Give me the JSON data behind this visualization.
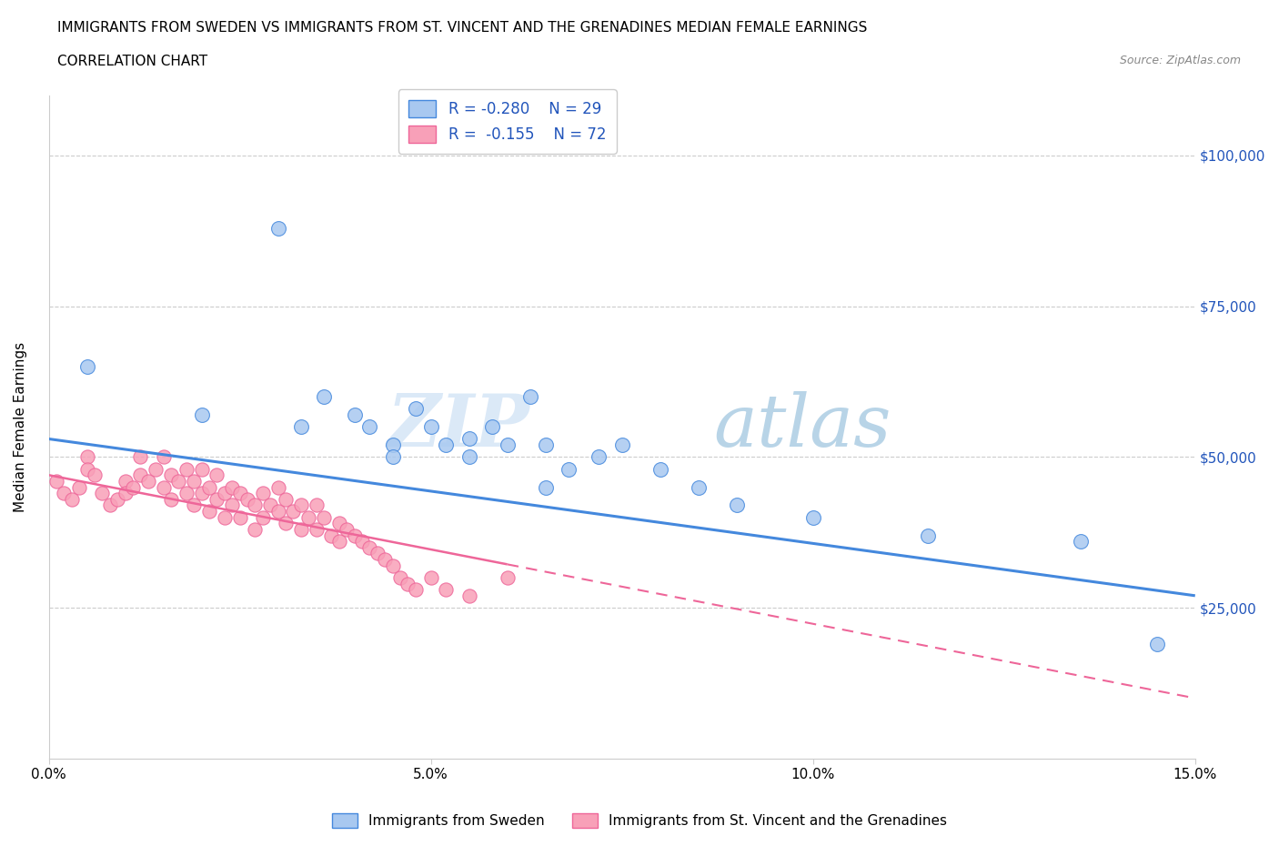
{
  "title": "IMMIGRANTS FROM SWEDEN VS IMMIGRANTS FROM ST. VINCENT AND THE GRENADINES MEDIAN FEMALE EARNINGS",
  "subtitle": "CORRELATION CHART",
  "source": "Source: ZipAtlas.com",
  "ylabel": "Median Female Earnings",
  "xlim": [
    0.0,
    0.15
  ],
  "ylim": [
    0,
    110000
  ],
  "yticks": [
    0,
    25000,
    50000,
    75000,
    100000
  ],
  "ytick_labels": [
    "",
    "$25,000",
    "$50,000",
    "$75,000",
    "$100,000"
  ],
  "xticks": [
    0.0,
    0.05,
    0.1,
    0.15
  ],
  "xtick_labels": [
    "0.0%",
    "5.0%",
    "10.0%",
    "15.0%"
  ],
  "watermark_zip": "ZIP",
  "watermark_atlas": "atlas",
  "legend_r1": "R = -0.280",
  "legend_n1": "N = 29",
  "legend_r2": "R =  -0.155",
  "legend_n2": "N = 72",
  "legend_label1": "Immigrants from Sweden",
  "legend_label2": "Immigrants from St. Vincent and the Grenadines",
  "color_sweden": "#a8c8f0",
  "color_stvincent": "#f8a0b8",
  "color_text_blue": "#2255bb",
  "color_trend_sweden": "#4488dd",
  "color_trend_stvincent": "#ee6699",
  "sweden_x": [
    0.005,
    0.02,
    0.03,
    0.033,
    0.036,
    0.04,
    0.042,
    0.045,
    0.048,
    0.05,
    0.052,
    0.055,
    0.058,
    0.06,
    0.063,
    0.065,
    0.068,
    0.072,
    0.075,
    0.08,
    0.085,
    0.09,
    0.065,
    0.045,
    0.055,
    0.1,
    0.115,
    0.135,
    0.145
  ],
  "sweden_y": [
    65000,
    57000,
    88000,
    55000,
    60000,
    57000,
    55000,
    52000,
    58000,
    55000,
    52000,
    50000,
    55000,
    52000,
    60000,
    52000,
    48000,
    50000,
    52000,
    48000,
    45000,
    42000,
    45000,
    50000,
    53000,
    40000,
    37000,
    36000,
    19000
  ],
  "stvincent_x": [
    0.001,
    0.002,
    0.003,
    0.004,
    0.005,
    0.005,
    0.006,
    0.007,
    0.008,
    0.009,
    0.01,
    0.01,
    0.011,
    0.012,
    0.012,
    0.013,
    0.014,
    0.015,
    0.015,
    0.016,
    0.016,
    0.017,
    0.018,
    0.018,
    0.019,
    0.019,
    0.02,
    0.02,
    0.021,
    0.021,
    0.022,
    0.022,
    0.023,
    0.023,
    0.024,
    0.024,
    0.025,
    0.025,
    0.026,
    0.027,
    0.027,
    0.028,
    0.028,
    0.029,
    0.03,
    0.03,
    0.031,
    0.031,
    0.032,
    0.033,
    0.033,
    0.034,
    0.035,
    0.035,
    0.036,
    0.037,
    0.038,
    0.038,
    0.039,
    0.04,
    0.041,
    0.042,
    0.043,
    0.044,
    0.045,
    0.046,
    0.047,
    0.048,
    0.05,
    0.052,
    0.055,
    0.06
  ],
  "stvincent_y": [
    46000,
    44000,
    43000,
    45000,
    50000,
    48000,
    47000,
    44000,
    42000,
    43000,
    46000,
    44000,
    45000,
    50000,
    47000,
    46000,
    48000,
    50000,
    45000,
    47000,
    43000,
    46000,
    48000,
    44000,
    46000,
    42000,
    48000,
    44000,
    45000,
    41000,
    47000,
    43000,
    44000,
    40000,
    45000,
    42000,
    44000,
    40000,
    43000,
    42000,
    38000,
    44000,
    40000,
    42000,
    45000,
    41000,
    43000,
    39000,
    41000,
    42000,
    38000,
    40000,
    42000,
    38000,
    40000,
    37000,
    39000,
    36000,
    38000,
    37000,
    36000,
    35000,
    34000,
    33000,
    32000,
    30000,
    29000,
    28000,
    30000,
    28000,
    27000,
    30000
  ],
  "trend_sweden_x0": 0.0,
  "trend_sweden_x1": 0.15,
  "trend_sweden_y0": 53000,
  "trend_sweden_y1": 27000,
  "trend_stvincent_x0": 0.0,
  "trend_stvincent_x1": 0.15,
  "trend_stvincent_y0": 47000,
  "trend_stvincent_y1": 10000
}
